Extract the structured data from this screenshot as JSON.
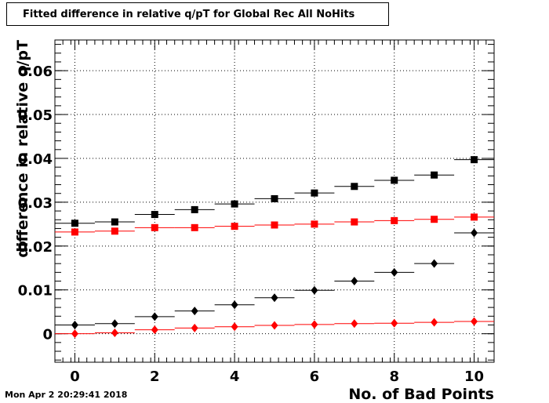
{
  "title": "Fitted difference in relative q/pT  for Global Rec All NoHits",
  "timestamp": "Mon Apr  2 20:29:41 2018",
  "chart_data": {
    "type": "scatter",
    "title": "Fitted difference in relative q/pT  for Global Rec All NoHits",
    "xlabel": "No. of Bad Points",
    "ylabel": "difference in relative q/pT",
    "xlim": [
      -0.5,
      10.5
    ],
    "ylim": [
      -0.0065,
      0.067
    ],
    "grid": true,
    "x_ticks": [
      0,
      2,
      4,
      6,
      8,
      10
    ],
    "x_tick_labels": [
      "0",
      "2",
      "4",
      "6",
      "8",
      "10"
    ],
    "y_ticks": [
      0,
      0.01,
      0.02,
      0.03,
      0.04,
      0.05,
      0.06
    ],
    "y_tick_labels": [
      "0",
      "0.01",
      "0.02",
      "0.03",
      "0.04",
      "0.05",
      "0.06"
    ],
    "x": [
      0,
      1,
      2,
      3,
      4,
      5,
      6,
      7,
      8,
      9,
      10
    ],
    "series": [
      {
        "marker": "square",
        "color": "#000000",
        "values": [
          0.0252,
          0.0255,
          0.0272,
          0.0283,
          0.0296,
          0.0308,
          0.0321,
          0.0336,
          0.035,
          0.0362,
          0.0397
        ]
      },
      {
        "marker": "square",
        "color": "#ff0000",
        "values": [
          0.0232,
          0.0234,
          0.0242,
          0.0242,
          0.0245,
          0.0248,
          0.025,
          0.0255,
          0.0258,
          0.0261,
          0.0266
        ]
      },
      {
        "marker": "diamond",
        "color": "#000000",
        "values": [
          0.002,
          0.0023,
          0.0039,
          0.0052,
          0.0066,
          0.0082,
          0.0099,
          0.012,
          0.014,
          0.016,
          0.023
        ]
      },
      {
        "marker": "diamond",
        "color": "#ff0000",
        "values": [
          0.0,
          0.0002,
          0.0009,
          0.0013,
          0.0016,
          0.0019,
          0.0021,
          0.0023,
          0.0024,
          0.0026,
          0.0028
        ]
      }
    ]
  }
}
